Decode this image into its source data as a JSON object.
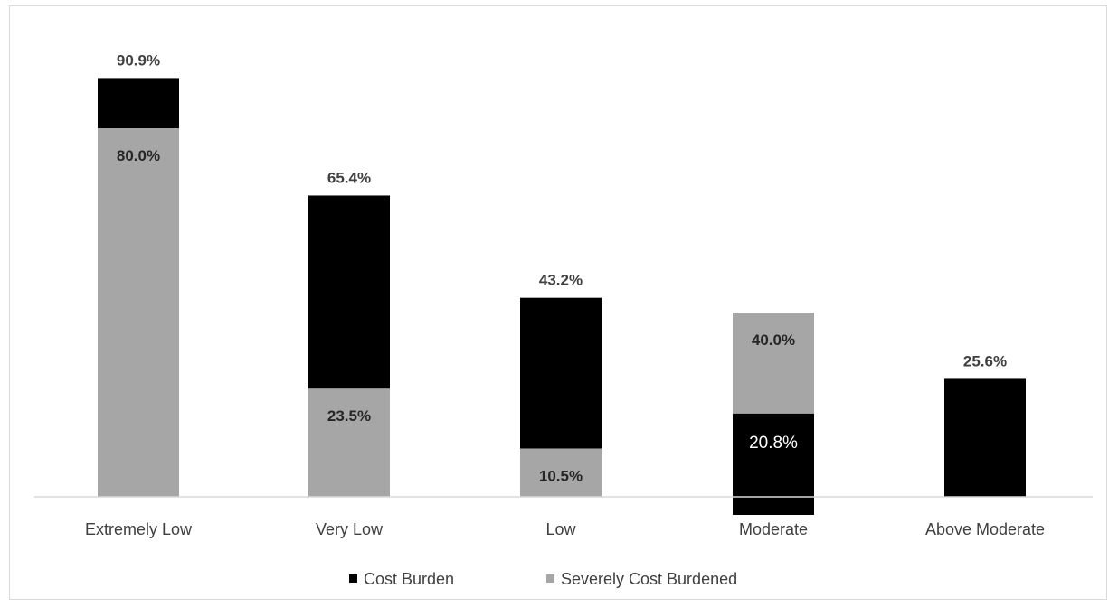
{
  "chart_data": {
    "type": "bar",
    "categories": [
      "Extremely Low",
      "Very Low",
      "Low",
      "Moderate",
      "Above Moderate"
    ],
    "series": [
      {
        "name": "Cost Burden",
        "color": "#000000",
        "values": [
          90.9,
          65.4,
          43.2,
          20.8,
          25.6
        ]
      },
      {
        "name": "Severely Cost Burdened",
        "color": "#a6a6a6",
        "values": [
          80.0,
          23.5,
          10.5,
          40.0,
          null
        ]
      }
    ],
    "data_labels": [
      {
        "cost": "90.9%",
        "severe": "80.0%"
      },
      {
        "cost": "65.4%",
        "severe": "23.5%"
      },
      {
        "cost": "43.2%",
        "severe": "10.5%"
      },
      {
        "cost": "20.8%",
        "severe": "40.0%"
      },
      {
        "cost": "25.6%",
        "severe": ""
      }
    ],
    "title": "",
    "xlabel": "",
    "ylabel": "",
    "ylim": [
      0,
      100
    ],
    "grid": false,
    "legend": "bottom"
  }
}
